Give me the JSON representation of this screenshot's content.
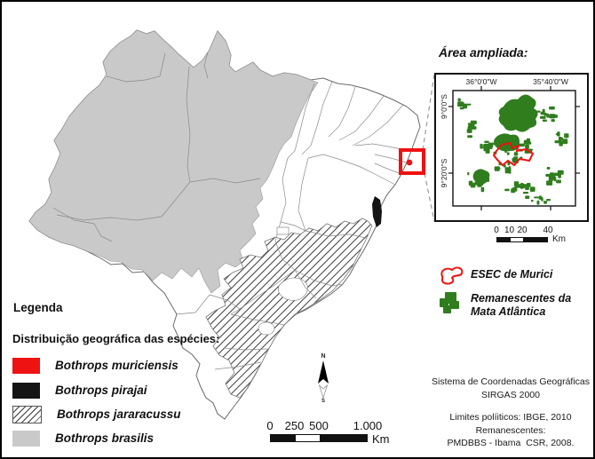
{
  "colors": {
    "species_red": "#ee1212",
    "species_black": "#141414",
    "species_gray": "#c9c9c9",
    "forest_green": "#2f7d1d",
    "state_line": "#8a8a8a"
  },
  "main_legend": {
    "title": "Legenda",
    "subtitle": "Distribuição geográfica das espécies:",
    "items": [
      {
        "label": "Bothrops muriciensis"
      },
      {
        "label": "Bothrops pirajai"
      },
      {
        "label": "Bothrops jararacussu"
      },
      {
        "label": "Bothrops brasilis"
      }
    ]
  },
  "inset": {
    "title": "Área ampliada:",
    "coord_top_left": "36°0'0\"W",
    "coord_top_right": "35°40'0\"W",
    "coord_left_top": "9°0'0\"S",
    "coord_left_bottom": "9°20'0\"S",
    "scalebar": {
      "labels": [
        "0",
        "10",
        "20",
        "40"
      ],
      "unit": "Km"
    },
    "legend": {
      "esec_label": "ESEC de Murici",
      "forest_label_line1": "Remanescentes da",
      "forest_label_line2": "Mata Atlântica"
    }
  },
  "north_arrow": {
    "n": "N",
    "s": "S"
  },
  "main_scalebar": {
    "labels": [
      "0",
      "250",
      "500",
      "1.000"
    ],
    "unit": "Km"
  },
  "credits": {
    "line1": "Sistema de Coordenadas Geográficas",
    "line2": "SIRGAS 2000",
    "line3": "Limites políiticos: IBGE, 2010",
    "line4": "Remanescentes:",
    "line5": "PMDBBS - Ibama  CSR, 2008."
  }
}
